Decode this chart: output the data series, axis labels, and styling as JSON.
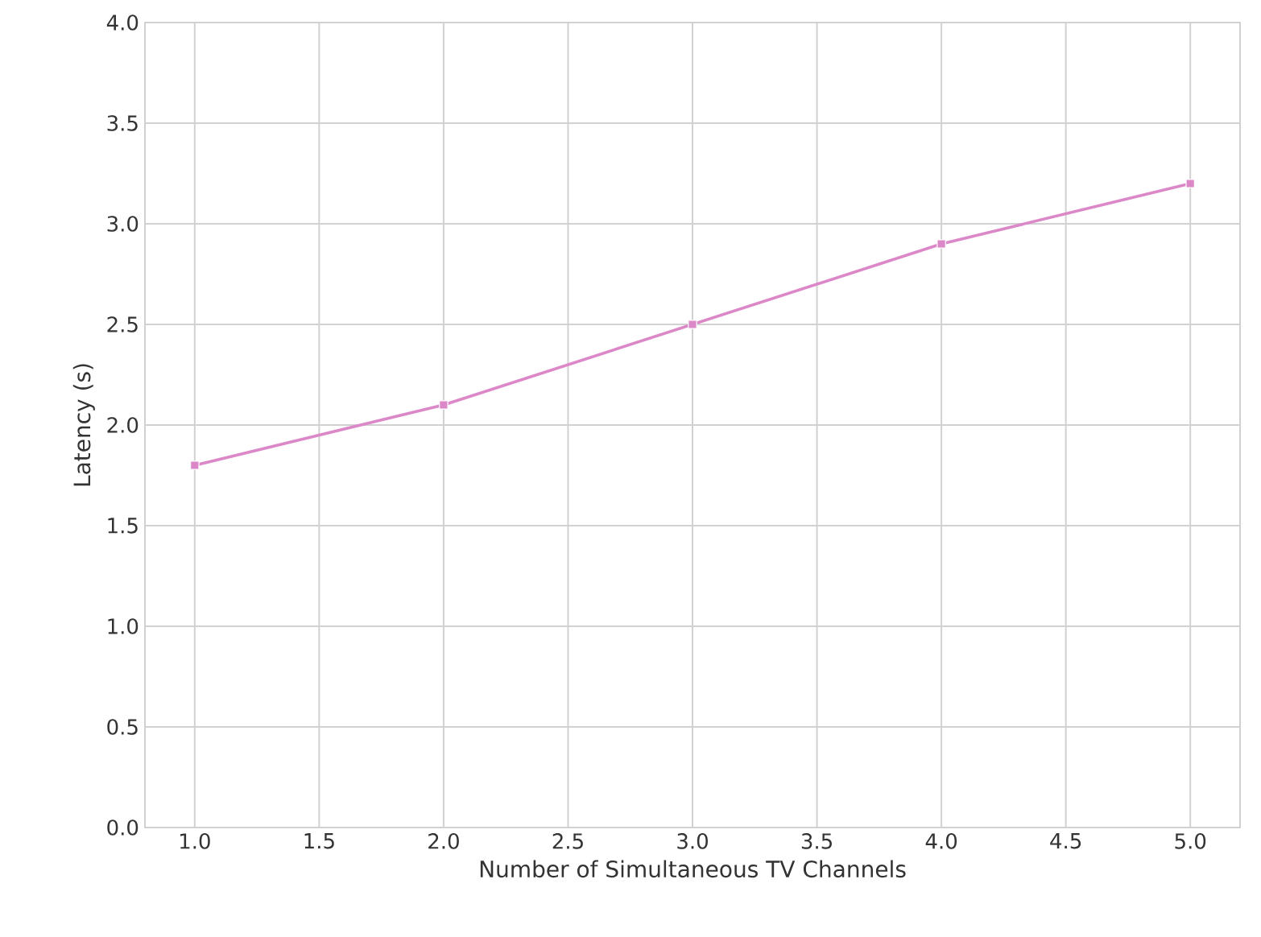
{
  "chart_data": {
    "type": "line",
    "xlabel": "Number of Simultaneous TV Channels",
    "ylabel": "Latency (s)",
    "x": [
      1,
      2,
      3,
      4,
      5
    ],
    "series": [
      {
        "color": "#dc88c8",
        "values": [
          1.8,
          2.1,
          2.5,
          2.9,
          3.2
        ]
      }
    ],
    "xlim": [
      0.8,
      5.2
    ],
    "ylim": [
      0,
      4
    ],
    "xticks": [
      {
        "value": 1,
        "label": "1.0"
      },
      {
        "value": 1.5,
        "label": "1.5"
      },
      {
        "value": 2,
        "label": "2.0"
      },
      {
        "value": 2.5,
        "label": "2.5"
      },
      {
        "value": 3,
        "label": "3.0"
      },
      {
        "value": 3.5,
        "label": "3.5"
      },
      {
        "value": 4,
        "label": "4.0"
      },
      {
        "value": 4.5,
        "label": "4.5"
      },
      {
        "value": 5,
        "label": "5.0"
      }
    ],
    "yticks": [
      {
        "value": 0,
        "label": "0.0"
      },
      {
        "value": 0.5,
        "label": "0.5"
      },
      {
        "value": 1,
        "label": "1.0"
      },
      {
        "value": 1.5,
        "label": "1.5"
      },
      {
        "value": 2,
        "label": "2.0"
      },
      {
        "value": 2.5,
        "label": "2.5"
      },
      {
        "value": 3,
        "label": "3.0"
      },
      {
        "value": 3.5,
        "label": "3.5"
      },
      {
        "value": 4,
        "label": "4.0"
      }
    ],
    "grid": true,
    "marker": "square",
    "line_style": "solid"
  }
}
